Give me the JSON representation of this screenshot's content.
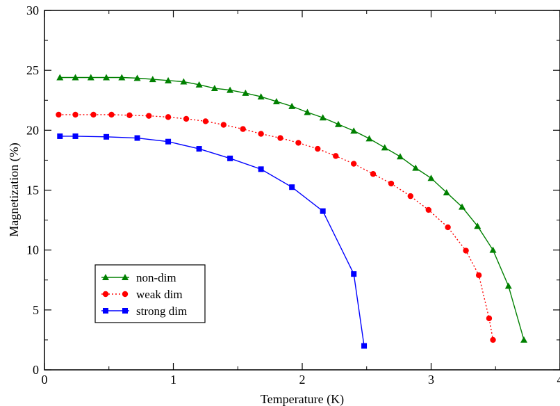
{
  "chart_data": {
    "type": "line",
    "xlabel": "Temperature (K)",
    "ylabel": "Magnetization (%)",
    "xlim": [
      0,
      4
    ],
    "ylim": [
      0,
      30
    ],
    "xticks": [
      "0",
      "1",
      "2",
      "3",
      "4"
    ],
    "yticks": [
      "0",
      "5",
      "10",
      "15",
      "20",
      "25",
      "30"
    ],
    "grid": false,
    "legend_position": "bottom-left",
    "series": [
      {
        "name": "non-dim",
        "color": "#008000",
        "marker": "triangle",
        "line_style": "solid",
        "x": [
          0.12,
          0.24,
          0.36,
          0.48,
          0.6,
          0.72,
          0.84,
          0.96,
          1.08,
          1.2,
          1.32,
          1.44,
          1.56,
          1.68,
          1.8,
          1.92,
          2.04,
          2.16,
          2.28,
          2.4,
          2.52,
          2.64,
          2.76,
          2.88,
          3.0,
          3.12,
          3.24,
          3.36,
          3.48,
          3.6,
          3.72
        ],
        "y": [
          24.4,
          24.4,
          24.4,
          24.4,
          24.4,
          24.35,
          24.25,
          24.15,
          24.05,
          23.8,
          23.5,
          23.35,
          23.1,
          22.8,
          22.4,
          22.0,
          21.5,
          21.05,
          20.5,
          19.95,
          19.3,
          18.55,
          17.8,
          16.85,
          16.0,
          14.8,
          13.6,
          12.0,
          10.0,
          7.0,
          2.5
        ]
      },
      {
        "name": "weak dim",
        "color": "#ff0000",
        "marker": "circle",
        "line_style": "dotted",
        "x": [
          0.11,
          0.24,
          0.38,
          0.52,
          0.66,
          0.81,
          0.96,
          1.1,
          1.25,
          1.39,
          1.54,
          1.68,
          1.83,
          1.97,
          2.12,
          2.26,
          2.4,
          2.55,
          2.69,
          2.84,
          2.98,
          3.13,
          3.27,
          3.37,
          3.45,
          3.48
        ],
        "y": [
          21.3,
          21.3,
          21.3,
          21.3,
          21.25,
          21.2,
          21.1,
          20.95,
          20.75,
          20.45,
          20.1,
          19.7,
          19.35,
          18.95,
          18.45,
          17.85,
          17.2,
          16.35,
          15.55,
          14.5,
          13.35,
          11.9,
          9.95,
          7.9,
          4.3,
          2.5
        ]
      },
      {
        "name": "strong dim",
        "color": "#0000ff",
        "marker": "square",
        "line_style": "solid",
        "x": [
          0.12,
          0.24,
          0.48,
          0.72,
          0.96,
          1.2,
          1.44,
          1.68,
          1.92,
          2.16,
          2.4,
          2.48
        ],
        "y": [
          19.5,
          19.5,
          19.45,
          19.35,
          19.05,
          18.45,
          17.65,
          16.75,
          15.25,
          13.25,
          8.0,
          2.0
        ]
      }
    ]
  }
}
